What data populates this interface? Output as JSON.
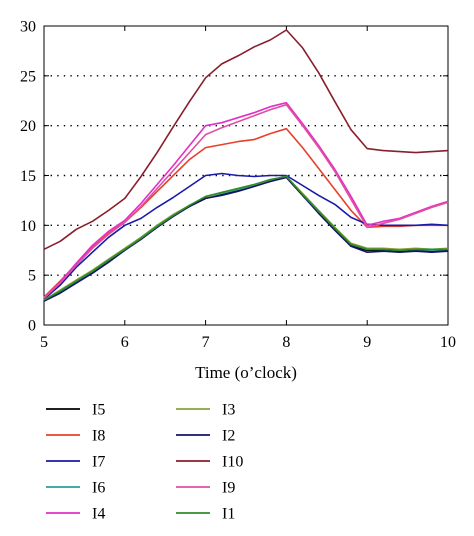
{
  "chart_data": {
    "type": "line",
    "title": "",
    "xlabel": "Time (o’clock)",
    "ylabel": "",
    "xlim": [
      5,
      10
    ],
    "ylim": [
      0,
      30
    ],
    "xticks": [
      "5",
      "6",
      "7",
      "8",
      "9",
      "10"
    ],
    "yticks": [
      "0",
      "5",
      "10",
      "15",
      "20",
      "25",
      "30"
    ],
    "grid": "horizontal dotted",
    "legend_position": "bottom",
    "legend_columns": [
      [
        "I5",
        "I8",
        "I7",
        "I6",
        "I4"
      ],
      [
        "I3",
        "I2",
        "I10",
        "I9",
        "I1"
      ]
    ],
    "x": [
      5,
      5.2,
      5.4,
      5.6,
      5.8,
      6,
      6.2,
      6.4,
      6.6,
      6.8,
      7,
      7.2,
      7.4,
      7.6,
      7.8,
      8,
      8.2,
      8.4,
      8.6,
      8.8,
      9,
      9.2,
      9.4,
      9.6,
      9.8,
      10
    ],
    "series": [
      {
        "name": "I5",
        "color": "#000000",
        "values": [
          2.4,
          3.4,
          4.3,
          5.4,
          6.5,
          7.6,
          8.7,
          9.9,
          11.0,
          11.9,
          12.7,
          13.1,
          13.5,
          14.0,
          14.5,
          14.8,
          13.0,
          11.3,
          9.6,
          8.0,
          7.5,
          7.5,
          7.4,
          7.5,
          7.4,
          7.5
        ]
      },
      {
        "name": "I8",
        "color": "#e8402a",
        "values": [
          2.8,
          4.4,
          6.1,
          7.8,
          9.2,
          10.3,
          11.8,
          13.4,
          15.0,
          16.6,
          17.8,
          18.1,
          18.4,
          18.6,
          19.2,
          19.7,
          17.8,
          15.7,
          13.6,
          11.5,
          9.8,
          9.9,
          9.9,
          10.0,
          10.0,
          10.0
        ]
      },
      {
        "name": "I7",
        "color": "#1a1aa8",
        "values": [
          2.6,
          4.0,
          5.8,
          7.3,
          8.8,
          10.0,
          10.7,
          11.8,
          12.8,
          13.9,
          15.0,
          15.2,
          15.0,
          14.9,
          15.0,
          15.0,
          14.0,
          13.0,
          12.1,
          10.8,
          10.1,
          10.0,
          10.0,
          10.0,
          10.1,
          10.0
        ]
      },
      {
        "name": "I6",
        "color": "#2a9d9b",
        "values": [
          2.5,
          3.3,
          4.3,
          5.3,
          6.4,
          7.6,
          8.7,
          9.8,
          11.0,
          12.0,
          12.8,
          13.2,
          13.6,
          14.0,
          14.4,
          14.9,
          13.1,
          11.4,
          9.7,
          8.1,
          7.6,
          7.6,
          7.5,
          7.6,
          7.5,
          7.6
        ]
      },
      {
        "name": "I4",
        "color": "#e22fc7",
        "values": [
          2.7,
          4.3,
          6.2,
          8.0,
          9.4,
          10.5,
          12.2,
          14.1,
          16.0,
          18.0,
          20.0,
          20.3,
          20.8,
          21.3,
          21.9,
          22.3,
          20.2,
          18.0,
          15.6,
          12.9,
          10.0,
          10.4,
          10.7,
          11.3,
          11.9,
          12.4
        ]
      },
      {
        "name": "I3",
        "color": "#8aa33a",
        "values": [
          2.5,
          3.5,
          4.5,
          5.5,
          6.6,
          7.7,
          8.8,
          10.0,
          11.1,
          12.0,
          12.8,
          13.3,
          13.7,
          14.1,
          14.5,
          14.9,
          13.2,
          11.5,
          9.8,
          8.2,
          7.7,
          7.7,
          7.6,
          7.7,
          7.6,
          7.7
        ]
      },
      {
        "name": "I2",
        "color": "#141464",
        "values": [
          2.4,
          3.2,
          4.2,
          5.2,
          6.3,
          7.5,
          8.6,
          9.8,
          10.9,
          11.9,
          12.7,
          13.0,
          13.4,
          13.9,
          14.4,
          14.8,
          13.0,
          11.2,
          9.5,
          7.9,
          7.3,
          7.4,
          7.3,
          7.4,
          7.3,
          7.4
        ]
      },
      {
        "name": "I10",
        "color": "#8a1e2c",
        "values": [
          7.6,
          8.4,
          9.6,
          10.4,
          11.5,
          12.7,
          14.9,
          17.3,
          19.9,
          22.4,
          24.8,
          26.2,
          27.0,
          27.9,
          28.6,
          29.6,
          27.8,
          25.3,
          22.4,
          19.6,
          17.7,
          17.5,
          17.4,
          17.3,
          17.4,
          17.5
        ]
      },
      {
        "name": "I9",
        "color": "#e04fa3",
        "values": [
          2.7,
          4.2,
          6.0,
          7.7,
          9.1,
          10.3,
          11.9,
          13.7,
          15.5,
          17.3,
          19.1,
          19.8,
          20.4,
          21.0,
          21.6,
          22.1,
          20.0,
          17.8,
          15.4,
          12.6,
          9.8,
          10.2,
          10.6,
          11.2,
          11.8,
          12.3
        ]
      },
      {
        "name": "I1",
        "color": "#2e8b2e",
        "values": [
          2.5,
          3.4,
          4.4,
          5.4,
          6.5,
          7.6,
          8.7,
          9.9,
          11.0,
          12.0,
          12.9,
          13.3,
          13.7,
          14.1,
          14.6,
          14.9,
          13.1,
          11.4,
          9.7,
          8.1,
          7.6,
          7.6,
          7.5,
          7.6,
          7.6,
          7.6
        ]
      }
    ]
  }
}
